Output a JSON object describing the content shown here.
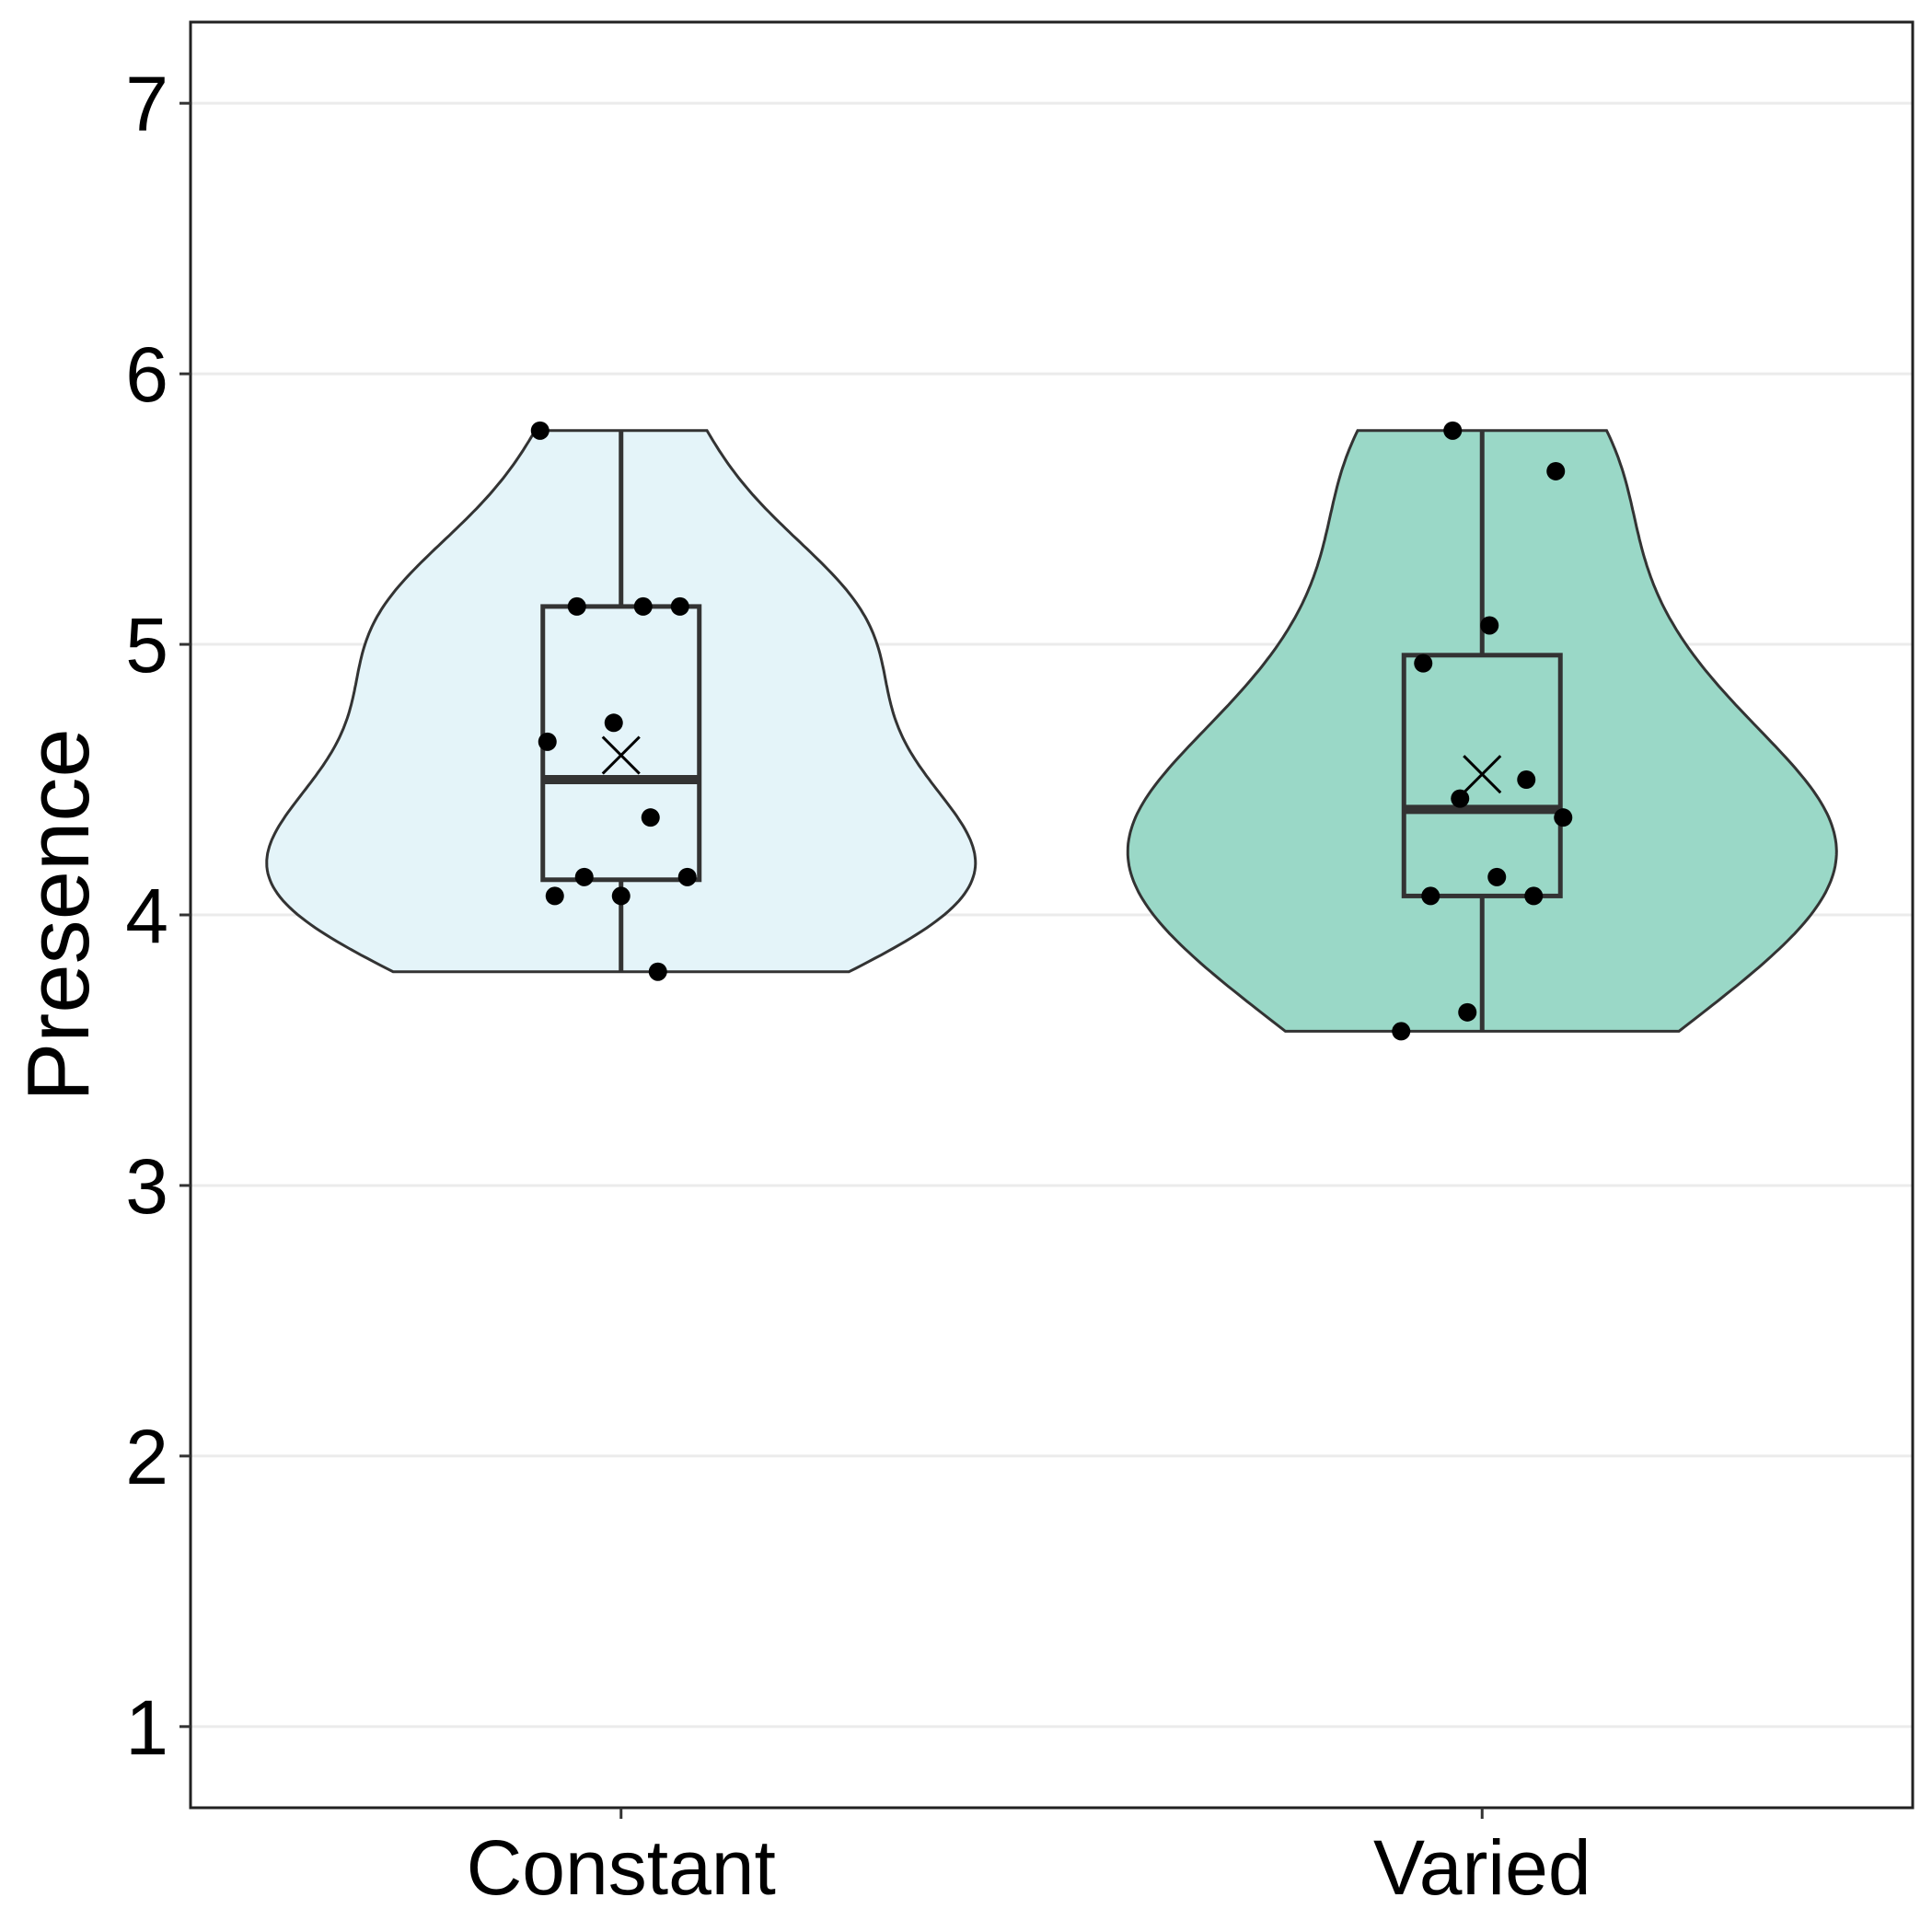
{
  "chart_data": {
    "type": "violin",
    "ylabel": "Presence",
    "xlabel": "",
    "ylim": [
      0.7,
      7.3
    ],
    "y_ticks": [
      "1",
      "2",
      "3",
      "4",
      "5",
      "6",
      "7"
    ],
    "grid": "horizontal",
    "categories": [
      "Constant",
      "Varied"
    ],
    "series": [
      {
        "category": "Constant",
        "fill": "#e4f4f9",
        "violin_min": 3.79,
        "violin_max": 5.79,
        "box": {
          "min": 3.79,
          "q1": 4.13,
          "median": 4.5,
          "q3": 5.14,
          "max": 5.79
        },
        "mean": 4.59,
        "points": [
          5.79,
          5.14,
          5.14,
          5.14,
          4.71,
          4.64,
          4.36,
          4.14,
          4.14,
          4.07,
          4.07,
          3.79
        ]
      },
      {
        "category": "Varied",
        "fill": "#9ad8c7",
        "violin_min": 3.57,
        "violin_max": 5.79,
        "box": {
          "min": 3.57,
          "q1": 4.07,
          "median": 4.39,
          "q3": 4.96,
          "max": 5.79
        },
        "mean": 4.52,
        "points": [
          5.79,
          5.64,
          5.07,
          4.93,
          4.5,
          4.43,
          4.36,
          4.14,
          4.07,
          4.07,
          3.64,
          3.57
        ]
      }
    ]
  }
}
